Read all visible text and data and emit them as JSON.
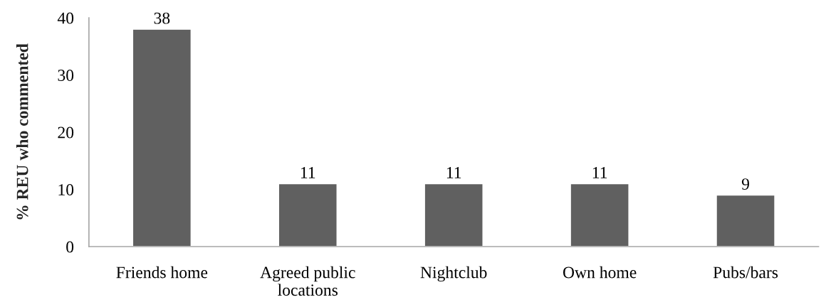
{
  "chart_data": {
    "type": "bar",
    "ylabel": "% REU who commented",
    "categories": [
      "Friends home",
      "Agreed public\nlocations",
      "Nightclub",
      "Own home",
      "Pubs/bars"
    ],
    "values": [
      38,
      11,
      11,
      11,
      9
    ],
    "color": "#606060",
    "ylim": [
      0,
      40
    ],
    "yticks": [
      0,
      10,
      20,
      30,
      40
    ],
    "grid": false,
    "data_labels": true
  }
}
